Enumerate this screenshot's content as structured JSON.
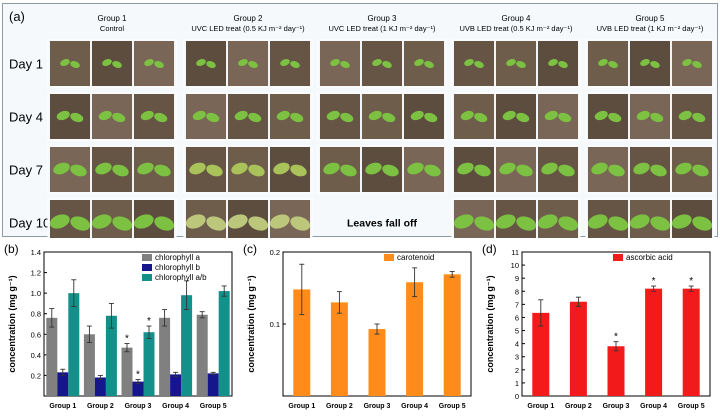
{
  "panel_a": {
    "label": "(a)",
    "groups": [
      {
        "name": "Group 1",
        "treatment": "Control"
      },
      {
        "name": "Group 2",
        "treatment": "UVC LED treat (0.5 KJ m⁻² day⁻¹)"
      },
      {
        "name": "Group 3",
        "treatment": "UVC LED treat (1 KJ m⁻² day⁻¹)"
      },
      {
        "name": "Group 4",
        "treatment": "UVB LED treat (0.5 KJ m⁻² day⁻¹)"
      },
      {
        "name": "Group 5",
        "treatment": "UVB LED treat (1 KJ m⁻² day⁻¹)"
      }
    ],
    "days": [
      "Day 1",
      "Day 4",
      "Day 7",
      "Day 10"
    ],
    "missing_note": "Leaves fall off"
  },
  "chart_data": [
    {
      "panel": "(b)",
      "type": "bar",
      "categories": [
        "Group 1",
        "Group 2",
        "Group 3",
        "Group 4",
        "Group 5"
      ],
      "ylabel": "concentration (mg g⁻¹)",
      "ylim": [
        0,
        1.4
      ],
      "yticks": [
        "0.2",
        "0.4",
        "0.6",
        "0.8",
        "1.0",
        "1.2",
        "1.4"
      ],
      "series": [
        {
          "name": "chlorophyll a",
          "color": "#808080",
          "values": [
            0.76,
            0.6,
            0.47,
            0.76,
            0.79
          ],
          "errors": [
            0.09,
            0.08,
            0.04,
            0.08,
            0.03
          ],
          "sig": [
            false,
            false,
            true,
            false,
            false
          ]
        },
        {
          "name": "chlorophyll b",
          "color": "#15168c",
          "values": [
            0.23,
            0.18,
            0.14,
            0.21,
            0.22
          ],
          "errors": [
            0.03,
            0.02,
            0.02,
            0.02,
            0.01
          ],
          "sig": [
            false,
            false,
            true,
            false,
            false
          ]
        },
        {
          "name": "chlorophyll a/b",
          "color": "#14908a",
          "values": [
            1.0,
            0.78,
            0.62,
            0.98,
            1.02
          ],
          "errors": [
            0.13,
            0.12,
            0.06,
            0.14,
            0.05
          ],
          "sig": [
            false,
            false,
            true,
            false,
            false
          ]
        }
      ],
      "sig_mark": "*"
    },
    {
      "panel": "(c)",
      "type": "bar",
      "categories": [
        "Group 1",
        "Group 2",
        "Group 3",
        "Group 4",
        "Group 5"
      ],
      "ylabel": "concentration (mg g⁻¹)",
      "ylim": [
        0,
        0.2
      ],
      "yticks": [
        "0.1",
        "0.2"
      ],
      "series": [
        {
          "name": "carotenoid",
          "color": "#ff8c1a",
          "values": [
            0.148,
            0.13,
            0.093,
            0.158,
            0.169
          ],
          "errors": [
            0.035,
            0.015,
            0.007,
            0.02,
            0.004
          ],
          "sig": [
            false,
            false,
            false,
            false,
            false
          ]
        }
      ]
    },
    {
      "panel": "(d)",
      "type": "bar",
      "categories": [
        "Group 1",
        "Group 2",
        "Group 3",
        "Group 4",
        "Group 5"
      ],
      "ylabel": "concentration (mg g⁻¹)",
      "ylim": [
        0,
        11
      ],
      "yticks": [
        "0",
        "1",
        "2",
        "3",
        "4",
        "5",
        "6",
        "7",
        "8",
        "9",
        "10",
        "11"
      ],
      "series": [
        {
          "name": "ascorbic acid",
          "color": "#f21a1a",
          "values": [
            6.35,
            7.2,
            3.8,
            8.2,
            8.2
          ],
          "errors": [
            1.0,
            0.35,
            0.35,
            0.2,
            0.2
          ],
          "sig": [
            false,
            false,
            true,
            true,
            true
          ]
        }
      ],
      "sig_mark": "*"
    }
  ]
}
